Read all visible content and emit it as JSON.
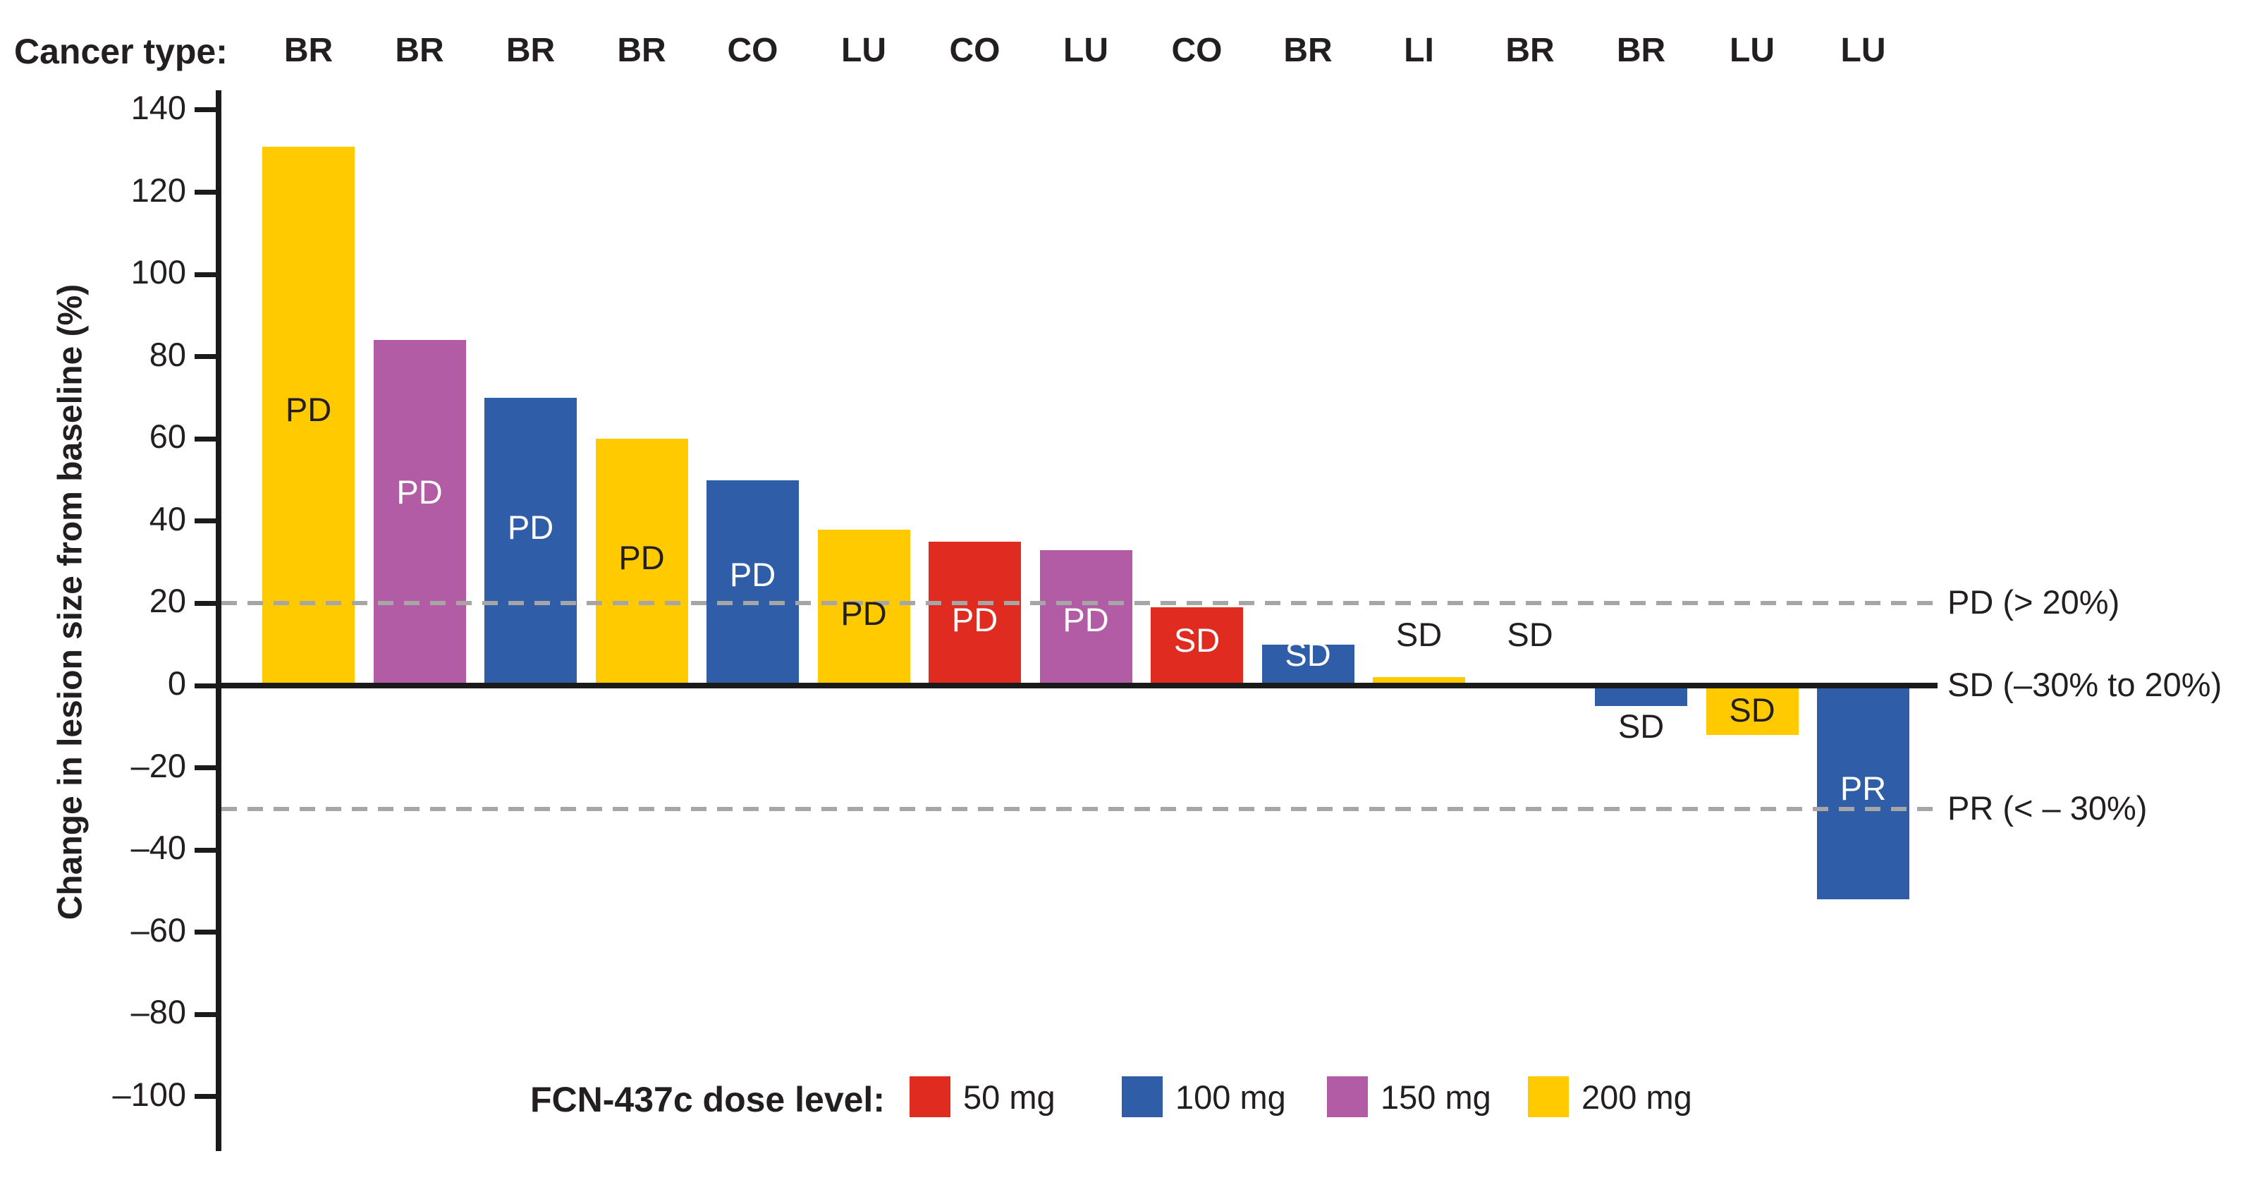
{
  "chart_data": {
    "type": "bar",
    "subtype": "waterfall",
    "title": "",
    "xlabel": "",
    "ylabel": "Change in lesion size from baseline (%)",
    "ylim": [
      -100,
      140
    ],
    "grid": false,
    "cancer_type_label": "Cancer type:",
    "yticks": [
      {
        "v": 140,
        "label": "140"
      },
      {
        "v": 120,
        "label": "120"
      },
      {
        "v": 100,
        "label": "100"
      },
      {
        "v": 80,
        "label": "80"
      },
      {
        "v": 60,
        "label": "60"
      },
      {
        "v": 40,
        "label": "40"
      },
      {
        "v": 20,
        "label": "20"
      },
      {
        "v": 0,
        "label": "0"
      },
      {
        "v": -20,
        "label": "–20"
      },
      {
        "v": -40,
        "label": "–40"
      },
      {
        "v": -60,
        "label": "–60"
      },
      {
        "v": -80,
        "label": "–80"
      },
      {
        "v": -100,
        "label": "–100"
      }
    ],
    "reference_lines": [
      {
        "value": 20,
        "style": "dashed",
        "label": "PD (> 20%)"
      },
      {
        "value": 0,
        "style": "solid",
        "label": "SD (–30% to 20%)"
      },
      {
        "value": -30,
        "style": "dashed",
        "label": "PR (< – 30%)"
      }
    ],
    "bars": [
      {
        "cancer_type": "BR",
        "dose": "200 mg",
        "value": 131,
        "response": "PD",
        "label_at": 67,
        "label_color": "#231f20"
      },
      {
        "cancer_type": "BR",
        "dose": "150 mg",
        "value": 84,
        "response": "PD",
        "label_at": 47,
        "label_color": "#ffffff"
      },
      {
        "cancer_type": "BR",
        "dose": "100 mg",
        "value": 70,
        "response": "PD",
        "label_at": 38.5,
        "label_color": "#ffffff"
      },
      {
        "cancer_type": "BR",
        "dose": "200 mg",
        "value": 60,
        "response": "PD",
        "label_at": 31,
        "label_color": "#231f20"
      },
      {
        "cancer_type": "CO",
        "dose": "100 mg",
        "value": 50,
        "response": "PD",
        "label_at": 27,
        "label_color": "#ffffff"
      },
      {
        "cancer_type": "LU",
        "dose": "200 mg",
        "value": 38,
        "response": "PD",
        "label_at": 17.5,
        "label_color": "#231f20"
      },
      {
        "cancer_type": "CO",
        "dose": "50 mg",
        "value": 35,
        "response": "PD",
        "label_at": 16,
        "label_color": "#ffffff"
      },
      {
        "cancer_type": "LU",
        "dose": "150 mg",
        "value": 33,
        "response": "PD",
        "label_at": 16,
        "label_color": "#ffffff"
      },
      {
        "cancer_type": "CO",
        "dose": "50 mg",
        "value": 19,
        "response": "SD",
        "label_at": 11,
        "label_color": "#ffffff"
      },
      {
        "cancer_type": "BR",
        "dose": "100 mg",
        "value": 10,
        "response": "SD",
        "label_at": 7.5,
        "label_color": "#ffffff"
      },
      {
        "cancer_type": "LI",
        "dose": "200 mg",
        "value": 2,
        "response": "SD",
        "label_at": 12.3,
        "label_color": "#231f20"
      },
      {
        "cancer_type": "BR",
        "dose": null,
        "value": 0,
        "response": "SD",
        "label_at": 12.3,
        "label_color": "#231f20"
      },
      {
        "cancer_type": "BR",
        "dose": "100 mg",
        "value": -5,
        "response": "SD",
        "label_at": -10,
        "label_color": "#231f20"
      },
      {
        "cancer_type": "LU",
        "dose": "200 mg",
        "value": -12,
        "response": "SD",
        "label_at": -6,
        "label_color": "#231f20"
      },
      {
        "cancer_type": "LU",
        "dose": "100 mg",
        "value": -52,
        "response": "PR",
        "label_at": -25,
        "label_color": "#ffffff"
      }
    ],
    "colors": {
      "50 mg": "#e02b20",
      "100 mg": "#2f5da8",
      "150 mg": "#b15ca4",
      "200 mg": "#ffcb00",
      "axis": "#1a1a1a",
      "dashed_line": "#a6a6a6",
      "text": "#231f20"
    }
  },
  "legend": {
    "title": "FCN-437c dose level:",
    "items": [
      {
        "label": "50 mg",
        "color": "#e02b20"
      },
      {
        "label": "100 mg",
        "color": "#2f5da8"
      },
      {
        "label": "150 mg",
        "color": "#b15ca4"
      },
      {
        "label": "200 mg",
        "color": "#ffcb00"
      }
    ]
  }
}
